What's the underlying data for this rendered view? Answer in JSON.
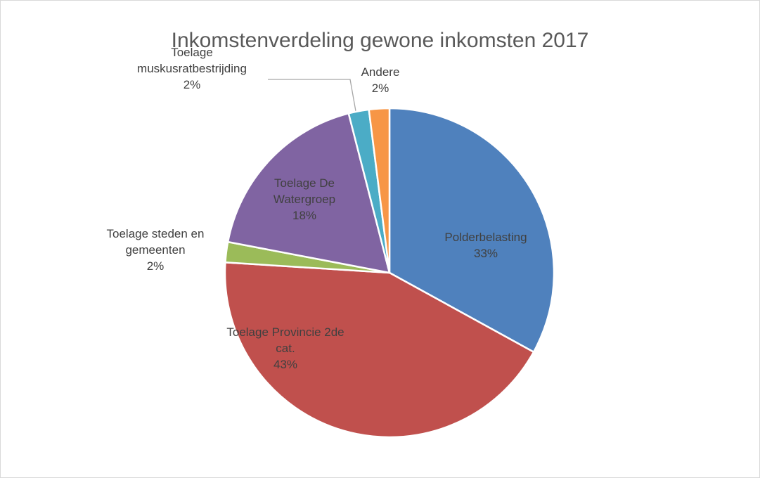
{
  "chart_data": {
    "type": "pie",
    "title": "Inkomstenverdeling gewone inkomsten 2017",
    "categories": [
      "Polderbelasting",
      "Toelage Provincie 2de cat.",
      "Toelage steden en gemeenten",
      "Toelage De Watergroep",
      "Toelage muskusratbestrijding",
      "Andere"
    ],
    "values": [
      33,
      43,
      2,
      18,
      2,
      2
    ],
    "value_labels": [
      "33%",
      "43%",
      "2%",
      "18%",
      "2%",
      "2%"
    ],
    "colors": [
      "#4f81bd",
      "#c0504d",
      "#9bbb59",
      "#8064a2",
      "#4bacc6",
      "#f79646"
    ]
  }
}
